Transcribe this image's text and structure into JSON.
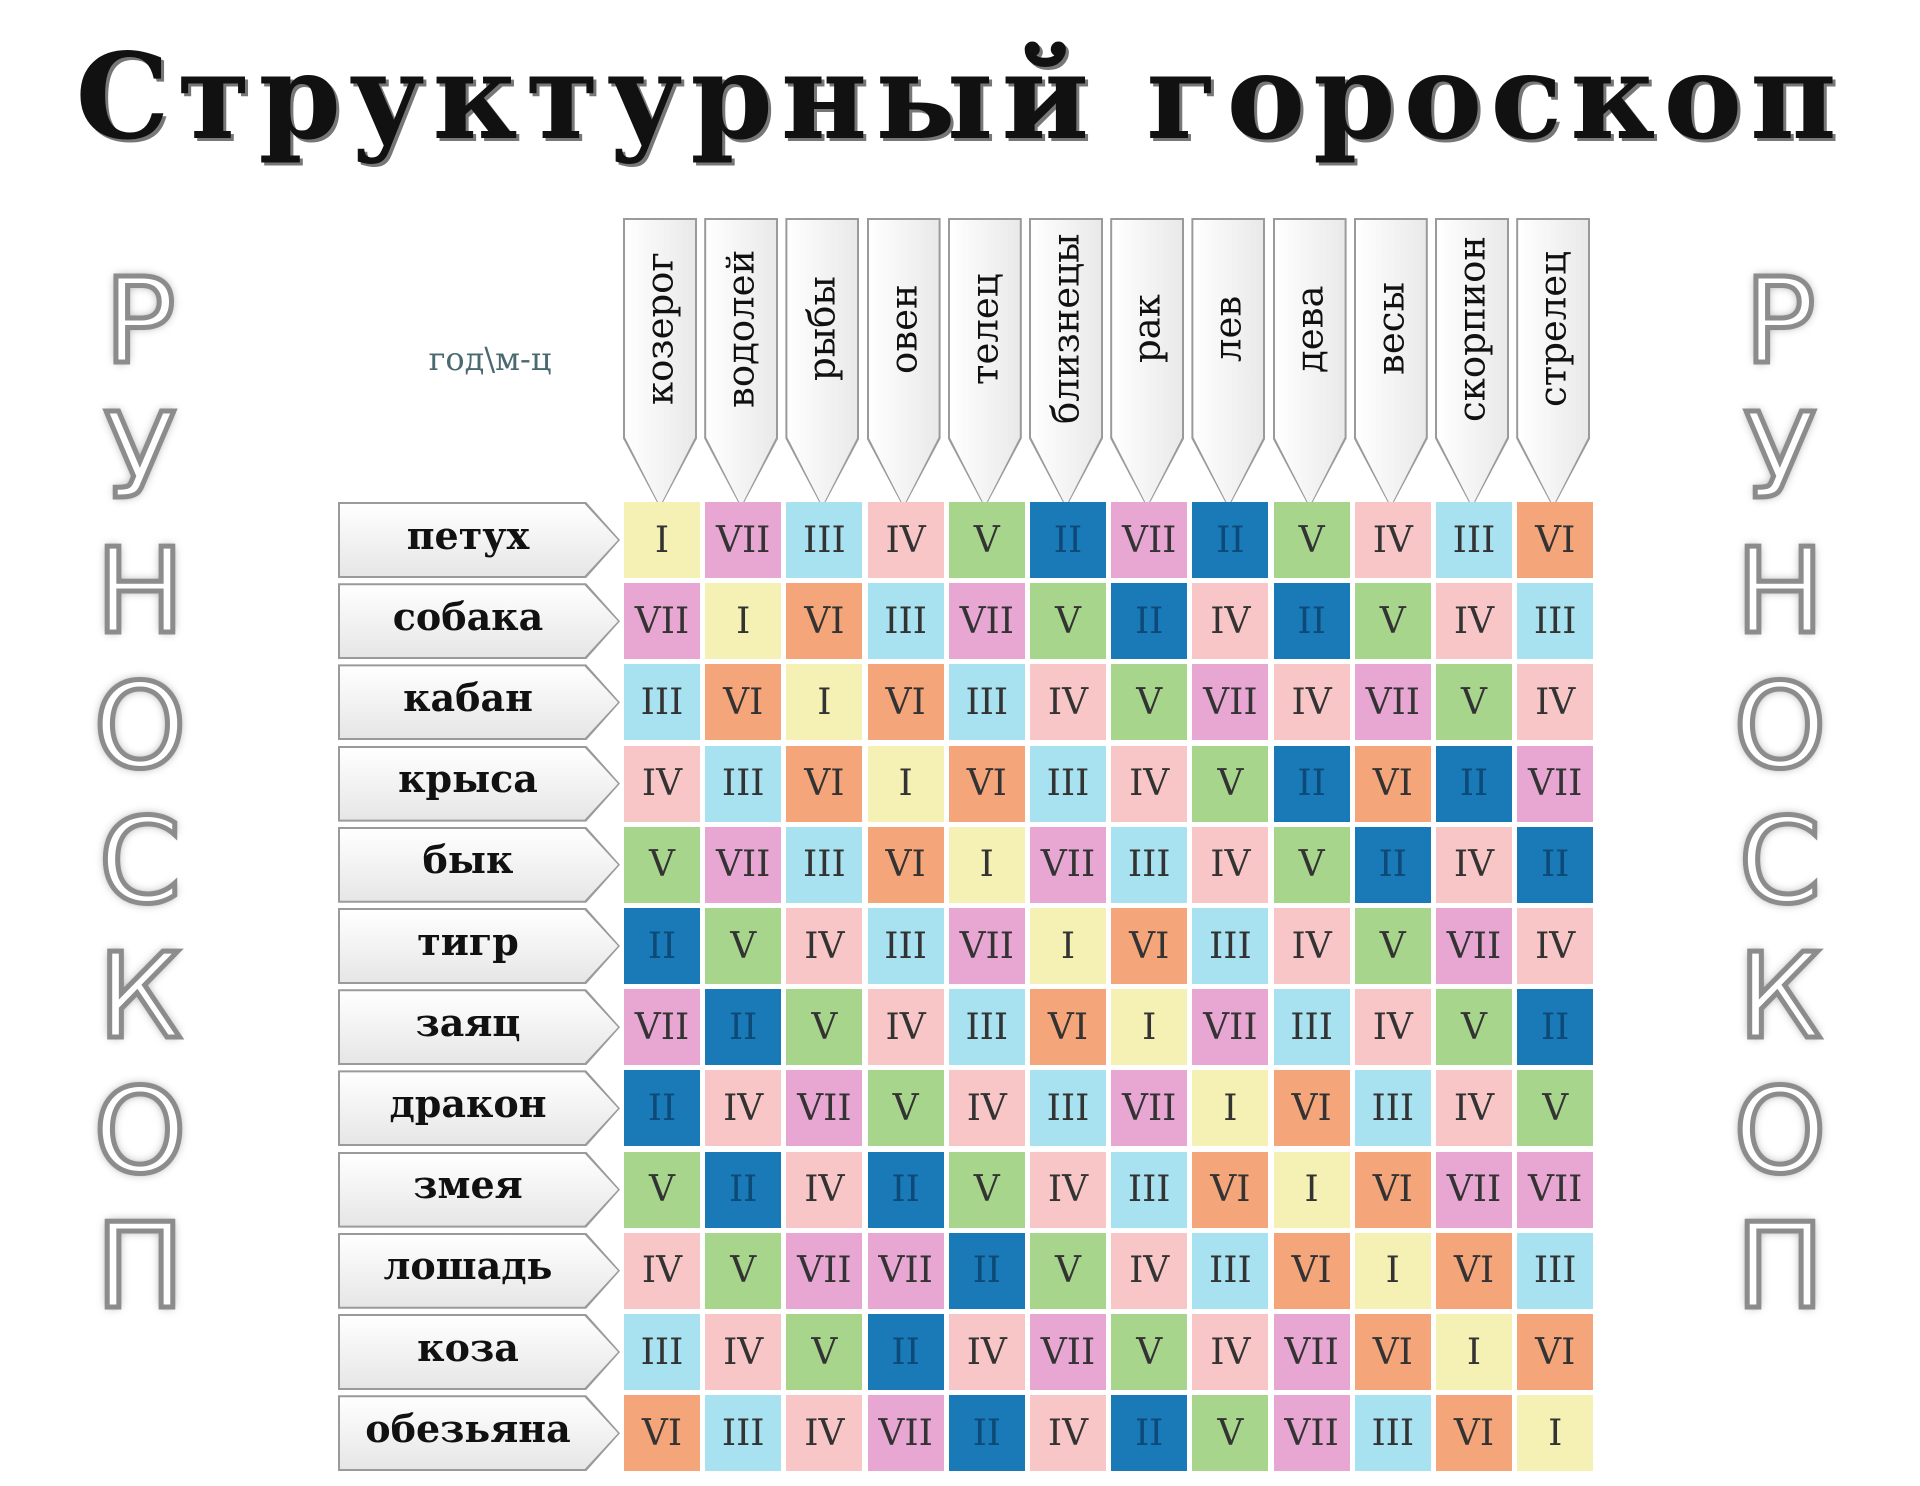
{
  "title": "Структурный гороскоп",
  "side_label": "РУНОСКОП",
  "corner_label": "год\\м-ц",
  "columns": [
    "козерог",
    "водолей",
    "рыбы",
    "овен",
    "телец",
    "близнецы",
    "рак",
    "лев",
    "дева",
    "весы",
    "скорпион",
    "стрелец"
  ],
  "rows": [
    {
      "label": "петух",
      "cells": [
        "I",
        "VII",
        "III",
        "IV",
        "V",
        "II",
        "VII",
        "II",
        "V",
        "IV",
        "III",
        "VI"
      ]
    },
    {
      "label": "собака",
      "cells": [
        "VII",
        "I",
        "VI",
        "III",
        "VII",
        "V",
        "II",
        "IV",
        "II",
        "V",
        "IV",
        "III"
      ]
    },
    {
      "label": "кабан",
      "cells": [
        "III",
        "VI",
        "I",
        "VI",
        "III",
        "IV",
        "V",
        "VII",
        "IV",
        "VII",
        "V",
        "IV"
      ]
    },
    {
      "label": "крыса",
      "cells": [
        "IV",
        "III",
        "VI",
        "I",
        "VI",
        "III",
        "IV",
        "V",
        "II",
        "VI",
        "II",
        "VII"
      ]
    },
    {
      "label": "бык",
      "cells": [
        "V",
        "VII",
        "III",
        "VI",
        "I",
        "VII",
        "III",
        "IV",
        "V",
        "II",
        "IV",
        "II"
      ]
    },
    {
      "label": "тигр",
      "cells": [
        "II",
        "V",
        "IV",
        "III",
        "VII",
        "I",
        "VI",
        "III",
        "IV",
        "V",
        "VII",
        "IV"
      ]
    },
    {
      "label": "заяц",
      "cells": [
        "VII",
        "II",
        "V",
        "IV",
        "III",
        "VI",
        "I",
        "VII",
        "III",
        "IV",
        "V",
        "II"
      ]
    },
    {
      "label": "дракон",
      "cells": [
        "II",
        "IV",
        "VII",
        "V",
        "IV",
        "III",
        "VII",
        "I",
        "VI",
        "III",
        "IV",
        "V"
      ]
    },
    {
      "label": "змея",
      "cells": [
        "V",
        "II",
        "IV",
        "II",
        "V",
        "IV",
        "III",
        "VI",
        "I",
        "VI",
        "VII",
        "VII"
      ]
    },
    {
      "label": "лошадь",
      "cells": [
        "IV",
        "V",
        "VII",
        "VII",
        "II",
        "V",
        "IV",
        "III",
        "VI",
        "I",
        "VI",
        "III"
      ]
    },
    {
      "label": "коза",
      "cells": [
        "III",
        "IV",
        "V",
        "II",
        "IV",
        "VII",
        "V",
        "IV",
        "VII",
        "VI",
        "I",
        "VI"
      ]
    },
    {
      "label": "обезьяна",
      "cells": [
        "VI",
        "III",
        "IV",
        "VII",
        "II",
        "IV",
        "II",
        "V",
        "VII",
        "III",
        "VI",
        "I"
      ]
    }
  ],
  "level_colors": {
    "I": "#f5f0b4",
    "II": "#1a7ab8",
    "III": "#a8e1ef",
    "IV": "#f8c6c6",
    "V": "#a6d58b",
    "VI": "#f5a57a",
    "VII": "#e8a6d3"
  }
}
